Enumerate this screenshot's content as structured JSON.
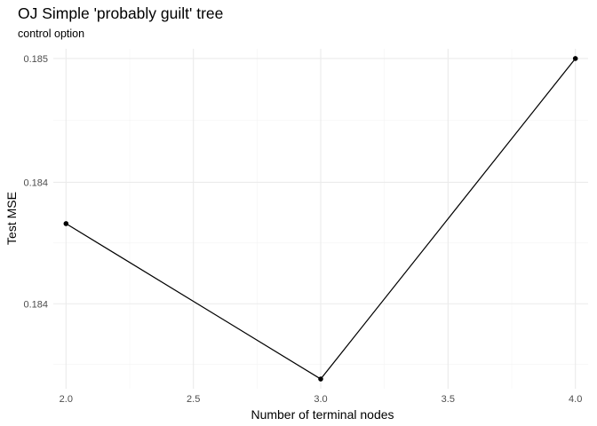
{
  "chart_data": {
    "type": "line",
    "title": "OJ Simple 'probably guilt' tree",
    "subtitle": "control option",
    "xlabel": "Number of terminal nodes",
    "ylabel": "Test MSE",
    "x": [
      2,
      3,
      4
    ],
    "series": [
      {
        "values": [
          0.18432,
          0.18368,
          0.185
        ]
      }
    ],
    "xlim": [
      1.95,
      4.05
    ],
    "ylim": [
      0.18364,
      0.18504
    ],
    "x_ticks": [
      2.0,
      2.5,
      3.0,
      3.5,
      4.0
    ],
    "x_tick_labels": [
      "2.0",
      "2.5",
      "3.0",
      "3.5",
      "4.0"
    ],
    "y_ticks": [
      0.18399,
      0.18449,
      0.185
    ],
    "y_tick_labels": [
      "0.184",
      "0.184",
      "0.185"
    ],
    "grid": true,
    "colors": {
      "line": "#000000",
      "grid": "#ebebeb",
      "tick_text": "#4d4d4d"
    }
  }
}
